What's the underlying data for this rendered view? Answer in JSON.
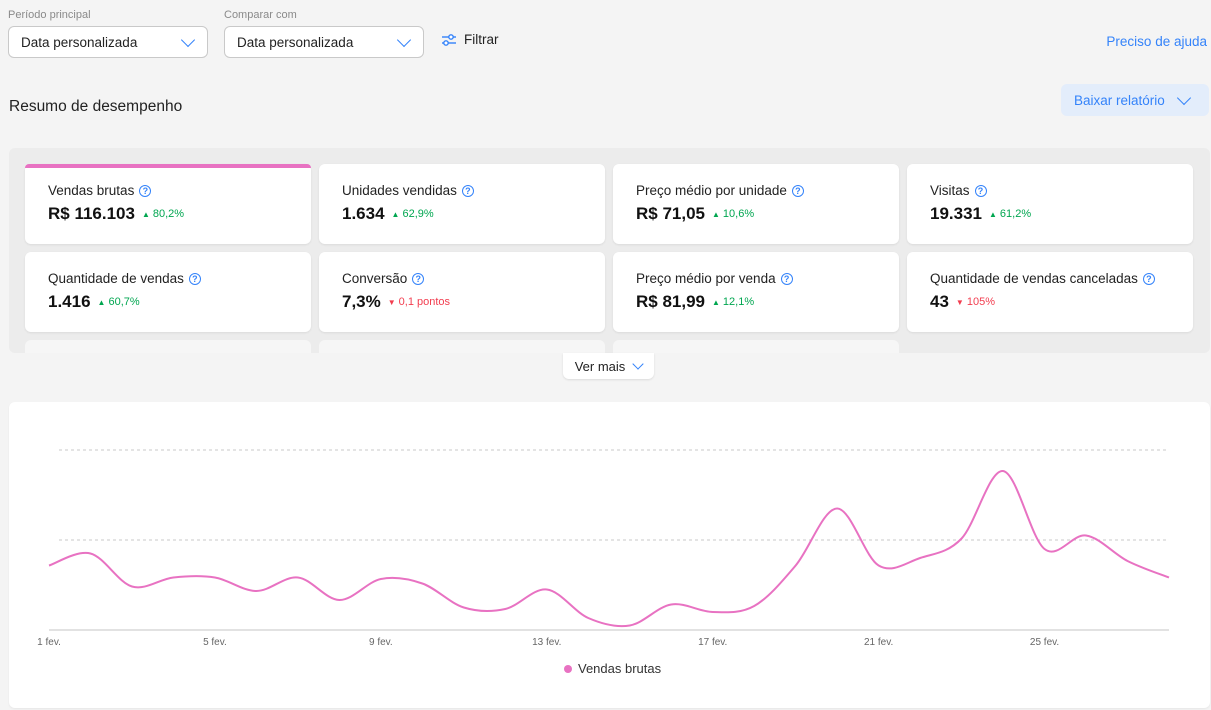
{
  "filters": {
    "main_period_label": "Período principal",
    "main_period_value": "Data personalizada",
    "compare_label": "Comparar com",
    "compare_value": "Data personalizada",
    "filter_label": "Filtrar"
  },
  "help_link": "Preciso de ajuda",
  "summary": {
    "title": "Resumo de desempenho",
    "download_label": "Baixar relatório"
  },
  "metrics": [
    {
      "title": "Vendas brutas",
      "value": "R$ 116.103",
      "delta": "80,2%",
      "trend": "up",
      "selected": true
    },
    {
      "title": "Unidades vendidas",
      "value": "1.634",
      "delta": "62,9%",
      "trend": "up"
    },
    {
      "title": "Preço médio por unidade",
      "value": "R$ 71,05",
      "delta": "10,6%",
      "trend": "up"
    },
    {
      "title": "Visitas",
      "value": "19.331",
      "delta": "61,2%",
      "trend": "up"
    },
    {
      "title": "Quantidade de vendas",
      "value": "1.416",
      "delta": "60,7%",
      "trend": "up"
    },
    {
      "title": "Conversão",
      "value": "7,3%",
      "delta": "0,1 pontos",
      "trend": "down"
    },
    {
      "title": "Preço médio por venda",
      "value": "R$ 81,99",
      "delta": "12,1%",
      "trend": "up"
    },
    {
      "title": "Quantidade de vendas canceladas",
      "value": "43",
      "delta": "105%",
      "trend": "down"
    }
  ],
  "see_more_label": "Ver mais",
  "chart_data": {
    "type": "line",
    "xlabel": "",
    "ylabel": "",
    "x_tick_labels": [
      "1 fev.",
      "5 fev.",
      "9 fev.",
      "13 fev.",
      "17 fev.",
      "21 fev.",
      "25 fev."
    ],
    "grid": true,
    "legend_position": "bottom-center",
    "series": [
      {
        "name": "Vendas brutas",
        "color": "#e872c2",
        "x": [
          1,
          2,
          3,
          4,
          5,
          6,
          7,
          8,
          9,
          10,
          11,
          12,
          13,
          14,
          15,
          16,
          17,
          18,
          19,
          20,
          21,
          22,
          23,
          24,
          25,
          26,
          27,
          28
        ],
        "values": [
          4.3,
          5.1,
          2.9,
          3.5,
          3.5,
          2.6,
          3.5,
          2.0,
          3.4,
          3.1,
          1.5,
          1.4,
          2.7,
          0.8,
          0.3,
          1.7,
          1.2,
          1.6,
          4.3,
          8.1,
          4.3,
          4.8,
          6.1,
          10.6,
          5.4,
          6.3,
          4.6,
          3.5
        ]
      }
    ]
  }
}
